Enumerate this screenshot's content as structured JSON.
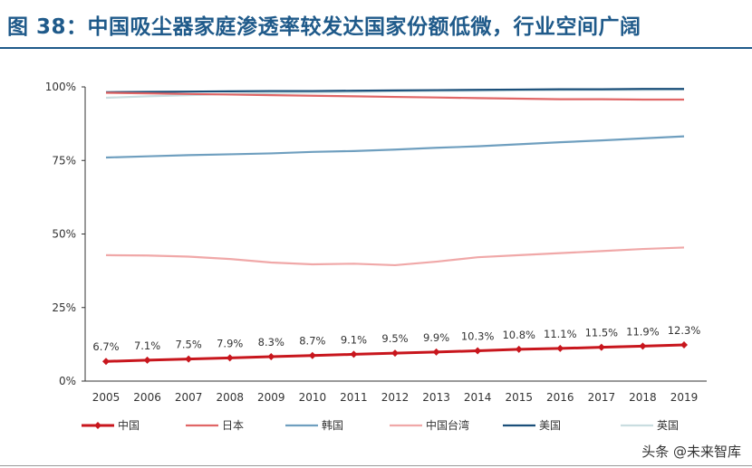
{
  "title": "图 38：中国吸尘器家庭渗透率较发达国家份额低微，行业空间广阔",
  "watermark": "头条 @未来智库",
  "chart_data": {
    "type": "line",
    "x": [
      2005,
      2006,
      2007,
      2008,
      2009,
      2010,
      2011,
      2012,
      2013,
      2014,
      2015,
      2016,
      2017,
      2018,
      2019
    ],
    "ylim": [
      0,
      100
    ],
    "yticks": [
      "0%",
      "25%",
      "50%",
      "75%",
      "100%"
    ],
    "grid": false,
    "legend": "bottom",
    "series": [
      {
        "name": "中国",
        "color": "#c8161d",
        "marker": "diamond",
        "labels": true,
        "values": [
          6.7,
          7.1,
          7.5,
          7.9,
          8.3,
          8.7,
          9.1,
          9.5,
          9.9,
          10.3,
          10.8,
          11.1,
          11.5,
          11.9,
          12.3
        ],
        "data_labels": [
          "6.7%",
          "7.1%",
          "7.5%",
          "7.9%",
          "8.3%",
          "8.7%",
          "9.1%",
          "9.5%",
          "9.9%",
          "10.3%",
          "10.8%",
          "11.1%",
          "11.5%",
          "11.9%",
          "12.3%"
        ]
      },
      {
        "name": "日本",
        "color": "#e06666",
        "values": [
          98,
          97.8,
          97.6,
          97.4,
          97.2,
          97,
          96.8,
          96.6,
          96.4,
          96.2,
          96,
          95.8,
          95.8,
          95.7,
          95.7
        ]
      },
      {
        "name": "韩国",
        "color": "#6f9fbf",
        "values": [
          76,
          76.4,
          76.8,
          77.1,
          77.4,
          77.9,
          78.2,
          78.7,
          79.3,
          79.8,
          80.5,
          81.2,
          81.8,
          82.5,
          83.2
        ]
      },
      {
        "name": "中国台湾",
        "color": "#f0a8a8",
        "values": [
          42.8,
          42.7,
          42.3,
          41.5,
          40.3,
          39.7,
          39.9,
          39.4,
          40.6,
          42.1,
          42.8,
          43.5,
          44.2,
          44.9,
          45.4
        ]
      },
      {
        "name": "美国",
        "color": "#1b4f7a",
        "values": [
          98.2,
          98.3,
          98.4,
          98.5,
          98.6,
          98.6,
          98.7,
          98.8,
          98.9,
          99,
          99.1,
          99.2,
          99.2,
          99.3,
          99.3
        ]
      },
      {
        "name": "英国",
        "color": "#c9dde0",
        "values": [
          96.3,
          96.8,
          97.2,
          97.6,
          97.9,
          98.1,
          98.3,
          98.5,
          98.6,
          98.7,
          98.8,
          98.9,
          99,
          99,
          99.1
        ]
      }
    ]
  }
}
